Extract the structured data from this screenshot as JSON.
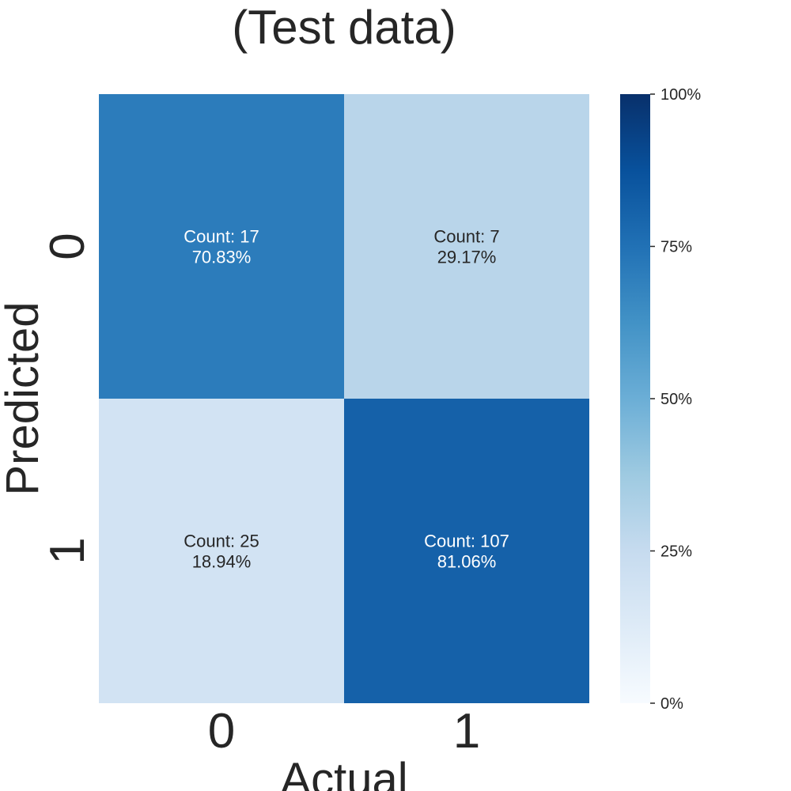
{
  "chart_data": {
    "type": "heatmap",
    "title": "(Test data)",
    "xlabel": "Actual",
    "ylabel": "Predicted",
    "x_categories": [
      "0",
      "1"
    ],
    "y_categories": [
      "0",
      "1"
    ],
    "cells": [
      [
        {
          "count_text": "Count: 17",
          "percent_text": "70.83%",
          "count": 17,
          "percent": 70.83
        },
        {
          "count_text": "Count: 7",
          "percent_text": "29.17%",
          "count": 7,
          "percent": 29.17
        }
      ],
      [
        {
          "count_text": "Count: 25",
          "percent_text": "18.94%",
          "count": 25,
          "percent": 18.94
        },
        {
          "count_text": "Count: 107",
          "percent_text": "81.06%",
          "count": 107,
          "percent": 81.06
        }
      ]
    ],
    "colorbar": {
      "range": [
        0,
        100
      ],
      "ticks": [
        0,
        25,
        50,
        75,
        100
      ],
      "tick_labels": [
        "0%",
        "25%",
        "50%",
        "75%",
        "100%"
      ]
    },
    "colormap": "Blues",
    "colormap_stops": [
      "#f7fbff",
      "#deebf7",
      "#c6dbef",
      "#9ecae1",
      "#6baed6",
      "#4292c6",
      "#2171b5",
      "#08519c",
      "#08306b"
    ],
    "grid": false,
    "colors": {
      "text_dark": "#262626",
      "text_light": "#ffffff"
    }
  }
}
